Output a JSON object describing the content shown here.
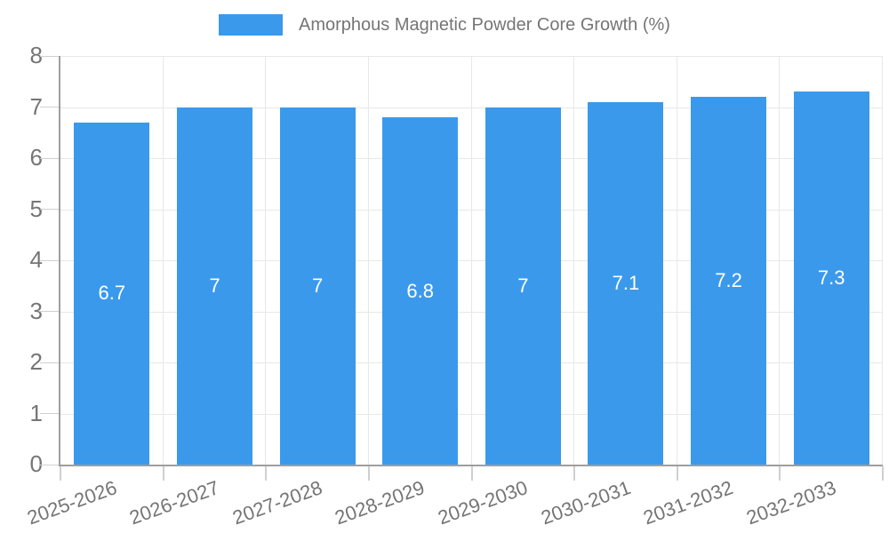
{
  "chart_data": {
    "type": "bar",
    "legend_label": "Amorphous Magnetic Powder Core Growth (%)",
    "categories": [
      "2025-2026",
      "2026-2027",
      "2027-2028",
      "2028-2029",
      "2029-2030",
      "2030-2031",
      "2031-2032",
      "2032-2033"
    ],
    "values": [
      6.7,
      7,
      7,
      6.8,
      7,
      7.1,
      7.2,
      7.3
    ],
    "value_labels": [
      "6.7",
      "7",
      "7",
      "6.8",
      "7",
      "7.1",
      "7.2",
      "7.3"
    ],
    "ylim": [
      0,
      8
    ],
    "ytick_labels": [
      "0",
      "1",
      "2",
      "3",
      "4",
      "5",
      "6",
      "7",
      "8"
    ],
    "grid": true,
    "legend_position": "top",
    "xlabel": "",
    "ylabel": "",
    "title": "",
    "colors": {
      "bar": "#3B99EC",
      "bar_value_text": "#FFFFFF",
      "axis_line": "#9E9E9E",
      "gridline": "#E8E8E8",
      "tick": "#CFCFCF",
      "label_text": "#757575",
      "background": "#FFFFFF"
    }
  }
}
